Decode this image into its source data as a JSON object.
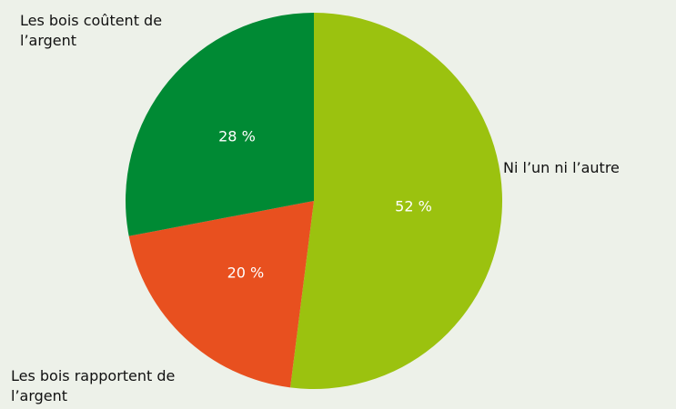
{
  "chart_data": {
    "type": "pie",
    "categories": [
      "Ni l’un ni l’autre",
      "Les bois rapportent de l’argent",
      "Les bois coûtent de l’argent"
    ],
    "values": [
      52,
      20,
      28
    ],
    "value_labels": [
      "52 %",
      "20 %",
      "28 %"
    ],
    "colors": [
      "#9bc20f",
      "#e8501f",
      "#008a34"
    ],
    "start_angle": "top",
    "direction": "clockwise"
  }
}
